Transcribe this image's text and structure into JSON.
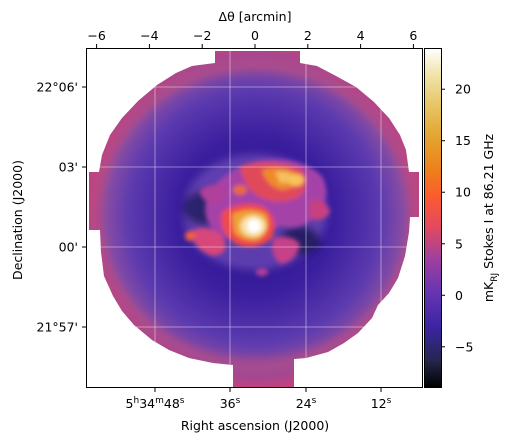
{
  "map": {
    "x_axis_title": "Right ascension (J2000)",
    "y_axis_title": "Declination (J2000)",
    "top_axis_title": "Δθ [arcmin]",
    "colorbar_title": "mK",
    "colorbar_title_sub": "RJ",
    "colorbar_title_rest": " Stokes I at 86.21 GHz",
    "top_ticks": [
      "−6",
      "−4",
      "−2",
      "0",
      "2",
      "4",
      "6"
    ],
    "top_tick_values": [
      -6,
      -4,
      -2,
      0,
      2,
      4,
      6
    ],
    "dec_ticks": [
      "22°06'",
      "03'",
      "00'",
      "21°57'"
    ],
    "ra_ticks": [
      {
        "h": "5",
        "hs": "h",
        "m": "34",
        "ms": "m",
        "s": "48",
        "ss": "s"
      },
      {
        "s": "36",
        "ss": "s"
      },
      {
        "s": "24",
        "ss": "s"
      },
      {
        "s": "12",
        "ss": "s"
      }
    ],
    "colorbar_ticks": [
      "20",
      "15",
      "10",
      "5",
      "0",
      "−5"
    ],
    "colorbar_tick_values": [
      20,
      15,
      10,
      5,
      0,
      -5
    ],
    "colorbar_range": [
      -9,
      24
    ],
    "colormap": "CMRmap",
    "grid": true
  }
}
